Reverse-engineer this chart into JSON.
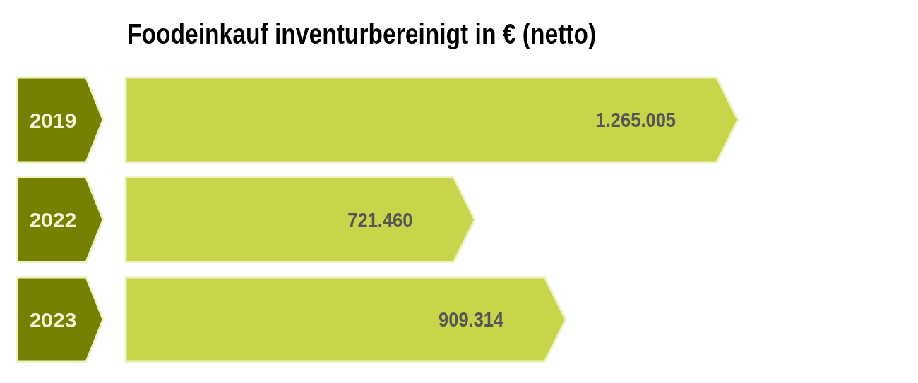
{
  "chart_data": {
    "type": "bar",
    "orientation": "horizontal",
    "title": "Foodeinkauf inventurbereinigt in € (netto)",
    "categories": [
      "2019",
      "2022",
      "2023"
    ],
    "values": [
      1265005,
      721460,
      909314
    ],
    "value_labels": [
      "1.265.005",
      "721.460",
      "909.314"
    ],
    "color": "#c8d44a"
  }
}
